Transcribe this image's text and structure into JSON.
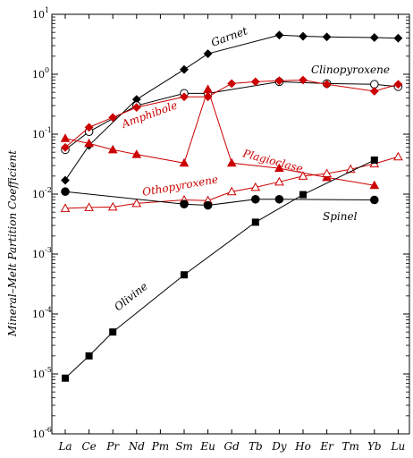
{
  "chart_data": {
    "type": "line",
    "ylabel": "Mineral–Melt Partition Coefficient",
    "xlabel": "",
    "categories": [
      "La",
      "Ce",
      "Pr",
      "Nd",
      "Pm",
      "Sm",
      "Eu",
      "Gd",
      "Tb",
      "Dy",
      "Ho",
      "Er",
      "Tm",
      "Yb",
      "Lu"
    ],
    "y_scale": "log",
    "ylim": [
      1e-06,
      10
    ],
    "y_ticks": [
      {
        "base": "10",
        "exp": "1"
      },
      {
        "base": "10",
        "exp": "0"
      },
      {
        "base": "10",
        "exp": "-1"
      },
      {
        "base": "10",
        "exp": "-2"
      },
      {
        "base": "10",
        "exp": "-3"
      },
      {
        "base": "10",
        "exp": "-4"
      },
      {
        "base": "10",
        "exp": "-5"
      },
      {
        "base": "10",
        "exp": "-6"
      }
    ],
    "grid": false,
    "legend": "none",
    "series": [
      {
        "name": "Garnet",
        "color": "#000000",
        "marker": "diamond-filled",
        "points": [
          [
            "La",
            0.017
          ],
          [
            "Ce",
            0.065
          ],
          [
            "Nd",
            0.38
          ],
          [
            "Sm",
            1.2
          ],
          [
            "Eu",
            2.2
          ],
          [
            "Dy",
            4.5
          ],
          [
            "Ho",
            4.3
          ],
          [
            "Er",
            4.2
          ],
          [
            "Yb",
            4.1
          ],
          [
            "Lu",
            4.0
          ]
        ]
      },
      {
        "name": "Clinopyroxene",
        "color": "#000000",
        "marker": "circle-open",
        "points": [
          [
            "La",
            0.055
          ],
          [
            "Ce",
            0.11
          ],
          [
            "Nd",
            0.3
          ],
          [
            "Sm",
            0.48
          ],
          [
            "Eu",
            0.48
          ],
          [
            "Dy",
            0.75
          ],
          [
            "Er",
            0.7
          ],
          [
            "Yb",
            0.68
          ],
          [
            "Lu",
            0.62
          ]
        ]
      },
      {
        "name": "Amphibole",
        "color": "#cc0000",
        "marker": "diamond-filled",
        "points": [
          [
            "La",
            0.06
          ],
          [
            "Ce",
            0.13
          ],
          [
            "Pr",
            0.19
          ],
          [
            "Nd",
            0.28
          ],
          [
            "Sm",
            0.42
          ],
          [
            "Eu",
            0.42
          ],
          [
            "Gd",
            0.7
          ],
          [
            "Tb",
            0.75
          ],
          [
            "Dy",
            0.78
          ],
          [
            "Ho",
            0.8
          ],
          [
            "Er",
            0.68
          ],
          [
            "Yb",
            0.52
          ],
          [
            "Lu",
            0.68
          ]
        ]
      },
      {
        "name": "Plagioclase",
        "color": "#cc0000",
        "marker": "triangle-filled",
        "points": [
          [
            "La",
            0.085
          ],
          [
            "Ce",
            0.07
          ],
          [
            "Pr",
            0.055
          ],
          [
            "Nd",
            0.046
          ],
          [
            "Sm",
            0.033
          ],
          [
            "Eu",
            0.56
          ],
          [
            "Gd",
            0.033
          ],
          [
            "Dy",
            0.027
          ],
          [
            "Er",
            0.019
          ],
          [
            "Yb",
            0.014
          ]
        ]
      },
      {
        "name": "Orthopyroxene",
        "color": "#cc0000",
        "marker": "triangle-open",
        "points": [
          [
            "La",
            0.0058
          ],
          [
            "Ce",
            0.006
          ],
          [
            "Pr",
            0.0061
          ],
          [
            "Nd",
            0.007
          ],
          [
            "Sm",
            0.008
          ],
          [
            "Eu",
            0.0078
          ],
          [
            "Gd",
            0.011
          ],
          [
            "Tb",
            0.013
          ],
          [
            "Dy",
            0.016
          ],
          [
            "Ho",
            0.02
          ],
          [
            "Er",
            0.022
          ],
          [
            "Tm",
            0.026
          ],
          [
            "Yb",
            0.032
          ],
          [
            "Lu",
            0.042
          ]
        ]
      },
      {
        "name": "Spinel",
        "color": "#000000",
        "marker": "circle-filled",
        "points": [
          [
            "La",
            0.011
          ],
          [
            "Sm",
            0.0068
          ],
          [
            "Eu",
            0.0065
          ],
          [
            "Tb",
            0.0082
          ],
          [
            "Dy",
            0.0082
          ],
          [
            "Yb",
            0.008
          ]
        ]
      },
      {
        "name": "Olivine",
        "color": "#000000",
        "marker": "square-filled",
        "points": [
          [
            "La",
            8.5e-06
          ],
          [
            "Ce",
            2e-05
          ],
          [
            "Pr",
            5e-05
          ],
          [
            "Sm",
            0.00045
          ],
          [
            "Tb",
            0.0034
          ],
          [
            "Ho",
            0.0098
          ],
          [
            "Yb",
            0.037
          ]
        ]
      }
    ],
    "annotations": [
      {
        "text": "Garnet",
        "series": "Garnet",
        "color": "#000000"
      },
      {
        "text": "Clinopyroxene",
        "series": "Clinopyroxene",
        "color": "#000000"
      },
      {
        "text": "Amphibole",
        "series": "Amphibole",
        "color": "#cc0000"
      },
      {
        "text": "Plagioclase",
        "series": "Plagioclase",
        "color": "#cc0000"
      },
      {
        "text": "Othopyroxene",
        "series": "Orthopyroxene",
        "color": "#cc0000"
      },
      {
        "text": "Spinel",
        "series": "Spinel",
        "color": "#000000"
      },
      {
        "text": "Olivine",
        "series": "Olivine",
        "color": "#000000"
      }
    ]
  }
}
